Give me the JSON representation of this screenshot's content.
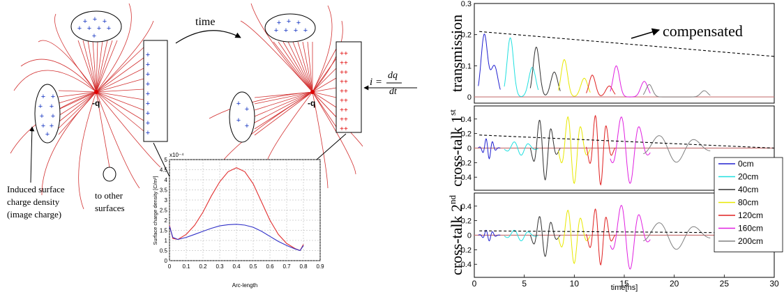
{
  "left": {
    "time_label": "time",
    "charge_label": "-q",
    "caption_induced": [
      "Induced surface",
      "charge density",
      "(image charge)"
    ],
    "caption_other": [
      "to other",
      "surfaces"
    ],
    "equation": {
      "i": "i =",
      "num": "dq",
      "den": "dt"
    },
    "plus": "+",
    "plus_plus": "++"
  },
  "inset_chart": {
    "type": "line",
    "xlabel": "Arc-length",
    "ylabel": "Surface charge density [C/m²]",
    "exponent": "x10⁻⁴",
    "xlim": [
      0,
      0.9
    ],
    "ylim": [
      0,
      5
    ],
    "xticks": [
      "0",
      "0.1",
      "0.2",
      "0.3",
      "0.4",
      "0.5",
      "0.6",
      "0.7",
      "0.8",
      "0.9"
    ],
    "yticks": [
      "0",
      "0.5",
      "1",
      "1.5",
      "2",
      "2.5",
      "3",
      "3.5",
      "4",
      "4.5",
      "5"
    ],
    "grid": true,
    "series": [
      {
        "color": "#e23030",
        "x": [
          0,
          0.02,
          0.05,
          0.1,
          0.15,
          0.2,
          0.25,
          0.3,
          0.35,
          0.4,
          0.45,
          0.5,
          0.55,
          0.6,
          0.65,
          0.7,
          0.75,
          0.78,
          0.8
        ],
        "y": [
          1.75,
          1.1,
          1.05,
          1.3,
          1.75,
          2.4,
          3.2,
          3.9,
          4.4,
          4.6,
          4.4,
          3.8,
          2.9,
          2.0,
          1.3,
          0.85,
          0.6,
          0.5,
          0.8
        ]
      },
      {
        "color": "#3030c8",
        "x": [
          0,
          0.02,
          0.05,
          0.1,
          0.15,
          0.2,
          0.25,
          0.3,
          0.35,
          0.4,
          0.45,
          0.5,
          0.55,
          0.6,
          0.65,
          0.7,
          0.75,
          0.78,
          0.8
        ],
        "y": [
          1.7,
          1.15,
          1.05,
          1.15,
          1.3,
          1.45,
          1.6,
          1.72,
          1.78,
          1.8,
          1.76,
          1.65,
          1.45,
          1.2,
          0.95,
          0.75,
          0.58,
          0.5,
          0.75
        ]
      }
    ]
  },
  "right_chart": {
    "type": "line",
    "xlabel": "time[ns]",
    "xlim": [
      0,
      30
    ],
    "xticks": [
      "0",
      "5",
      "10",
      "15",
      "20",
      "25",
      "30"
    ],
    "annotation": "compensated",
    "panels": [
      {
        "label": "transmission",
        "ylim": [
          -0.02,
          0.3
        ],
        "yticks": [
          "0",
          "0.1",
          "0.2",
          "0.3"
        ],
        "ytick_values": [
          0,
          0.1,
          0.2,
          0.3
        ],
        "envelope": [
          0.21,
          0.13
        ],
        "peak_scale": [
          0.2,
          0.19,
          0.16,
          0.12,
          0.07,
          0.1,
          0.04
        ]
      },
      {
        "label": "cross-talk 1st",
        "label_main": "cross-talk 1",
        "label_sup": "st",
        "ylim": [
          -0.58,
          0.58
        ],
        "yticks": [
          "-0.4",
          "-0.2",
          "0",
          "0.2",
          "0.4"
        ],
        "ytick_values": [
          -0.4,
          -0.2,
          0,
          0.2,
          0.4
        ],
        "envelope": [
          0.18,
          0.0
        ],
        "peak_scale": [
          0.15,
          0.1,
          0.45,
          0.5,
          0.52,
          0.5,
          0.2
        ]
      },
      {
        "label": "cross-talk 2nd",
        "label_main": "cross-talk 2",
        "label_sup": "nd",
        "ylim": [
          -0.58,
          0.58
        ],
        "yticks": [
          "-0.4",
          "-0.2",
          "0",
          "0.2",
          "0.4"
        ],
        "ytick_values": [
          -0.4,
          -0.2,
          0,
          0.2,
          0.4
        ],
        "envelope": [
          0.06,
          0.03
        ],
        "peak_scale": [
          0.08,
          0.08,
          0.3,
          0.4,
          0.42,
          0.48,
          0.2
        ]
      }
    ],
    "legend": {
      "placement": "right",
      "entries": [
        {
          "name": "0cm",
          "color": "#2020d0"
        },
        {
          "name": "20cm",
          "color": "#20e0e0"
        },
        {
          "name": "40cm",
          "color": "#303030"
        },
        {
          "name": "80cm",
          "color": "#e8e800"
        },
        {
          "name": "120cm",
          "color": "#e02020"
        },
        {
          "name": "160cm",
          "color": "#e020e0"
        },
        {
          "name": "200cm",
          "color": "#808080"
        }
      ]
    }
  }
}
